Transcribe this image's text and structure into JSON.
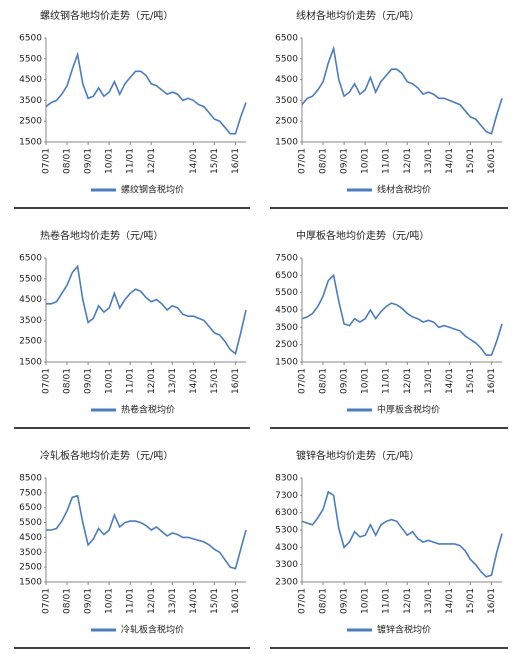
{
  "chart_data": [
    {
      "type": "line",
      "title": "螺纹钢各地均价走势（元/吨）",
      "x": [
        "07/01",
        "07/04",
        "07/07",
        "07/10",
        "08/01",
        "08/04",
        "08/07",
        "08/10",
        "09/01",
        "09/04",
        "09/07",
        "09/10",
        "10/01",
        "10/04",
        "10/07",
        "10/10",
        "11/01",
        "11/04",
        "11/07",
        "11/10",
        "12/01",
        "12/04",
        "12/07",
        "12/10",
        "13/01",
        "13/04",
        "13/07",
        "13/10",
        "14/01",
        "14/04",
        "14/07",
        "14/10",
        "15/01",
        "15/04",
        "15/07",
        "15/10",
        "16/01",
        "16/04",
        "16/07"
      ],
      "xticks": [
        "07/01",
        "08/01",
        "09/01",
        "10/01",
        "11/01",
        "12/01",
        "14/01",
        "15/01",
        "16/01"
      ],
      "ylim": [
        1500,
        6500
      ],
      "yticks": [
        1500,
        2500,
        3500,
        4500,
        5500,
        6500
      ],
      "series": [
        {
          "name": "螺纹钢含税均价",
          "color": "#4a7cc0",
          "values": [
            3200,
            3400,
            3500,
            3800,
            4200,
            5000,
            5700,
            4300,
            3600,
            3700,
            4100,
            3700,
            3900,
            4400,
            3800,
            4300,
            4600,
            4900,
            4900,
            4700,
            4300,
            4200,
            4000,
            3800,
            3900,
            3800,
            3500,
            3600,
            3500,
            3300,
            3200,
            2900,
            2600,
            2500,
            2200,
            1900,
            1900,
            2700,
            3400
          ]
        }
      ]
    },
    {
      "type": "line",
      "title": "线材各地均价走势（元/吨）",
      "x": [
        "07/01",
        "07/04",
        "07/07",
        "07/10",
        "08/01",
        "08/04",
        "08/07",
        "08/10",
        "09/01",
        "09/04",
        "09/07",
        "09/10",
        "10/01",
        "10/04",
        "10/07",
        "10/10",
        "11/01",
        "11/04",
        "11/07",
        "11/10",
        "12/01",
        "12/04",
        "12/07",
        "12/10",
        "13/01",
        "13/04",
        "13/07",
        "13/10",
        "14/01",
        "14/04",
        "14/07",
        "14/10",
        "15/01",
        "15/04",
        "15/07",
        "15/10",
        "16/01",
        "16/04",
        "16/07"
      ],
      "xticks": [
        "07/01",
        "08/01",
        "09/01",
        "10/01",
        "11/01",
        "12/01",
        "13/01",
        "14/01",
        "15/01",
        "16/01"
      ],
      "ylim": [
        1500,
        6500
      ],
      "yticks": [
        1500,
        2500,
        3500,
        4500,
        5500,
        6500
      ],
      "series": [
        {
          "name": "线材含税均价",
          "color": "#4a7cc0",
          "values": [
            3300,
            3600,
            3700,
            4000,
            4400,
            5300,
            6000,
            4500,
            3700,
            3900,
            4300,
            3800,
            4000,
            4600,
            3900,
            4400,
            4700,
            5000,
            5000,
            4800,
            4400,
            4300,
            4100,
            3800,
            3900,
            3800,
            3600,
            3600,
            3500,
            3400,
            3300,
            3000,
            2700,
            2600,
            2300,
            2000,
            1900,
            2800,
            3600
          ]
        }
      ]
    },
    {
      "type": "line",
      "title": "热卷各地均价走势（元/吨）",
      "x": [
        "07/01",
        "07/04",
        "07/07",
        "07/10",
        "08/01",
        "08/04",
        "08/07",
        "08/10",
        "09/01",
        "09/04",
        "09/07",
        "09/10",
        "10/01",
        "10/04",
        "10/07",
        "10/10",
        "11/01",
        "11/04",
        "11/07",
        "11/10",
        "12/01",
        "12/04",
        "12/07",
        "12/10",
        "13/01",
        "13/04",
        "13/07",
        "13/10",
        "14/01",
        "14/04",
        "14/07",
        "14/10",
        "15/01",
        "15/04",
        "15/07",
        "15/10",
        "16/01",
        "16/04",
        "16/07"
      ],
      "xticks": [
        "07/01",
        "08/01",
        "09/01",
        "10/01",
        "11/01",
        "12/01",
        "13/01",
        "14/01",
        "15/01",
        "16/01"
      ],
      "ylim": [
        1500,
        6500
      ],
      "yticks": [
        1500,
        2500,
        3500,
        4500,
        5500,
        6500
      ],
      "series": [
        {
          "name": "热卷含税均价",
          "color": "#4a7cc0",
          "values": [
            4300,
            4300,
            4400,
            4800,
            5200,
            5800,
            6100,
            4500,
            3400,
            3600,
            4200,
            3900,
            4100,
            4800,
            4100,
            4500,
            4800,
            5000,
            4900,
            4600,
            4400,
            4500,
            4300,
            4000,
            4200,
            4100,
            3800,
            3700,
            3700,
            3600,
            3500,
            3200,
            2900,
            2800,
            2500,
            2100,
            1900,
            2900,
            4000
          ]
        }
      ]
    },
    {
      "type": "line",
      "title": "中厚板各地均价走势（元/吨）",
      "x": [
        "07/01",
        "07/04",
        "07/07",
        "07/10",
        "08/01",
        "08/04",
        "08/07",
        "08/10",
        "09/01",
        "09/04",
        "09/07",
        "09/10",
        "10/01",
        "10/04",
        "10/07",
        "10/10",
        "11/01",
        "11/04",
        "11/07",
        "11/10",
        "12/01",
        "12/04",
        "12/07",
        "12/10",
        "13/01",
        "13/04",
        "13/07",
        "13/10",
        "14/01",
        "14/04",
        "14/07",
        "14/10",
        "15/01",
        "15/04",
        "15/07",
        "15/10",
        "16/01",
        "16/04",
        "16/07"
      ],
      "xticks": [
        "07/01",
        "08/01",
        "09/01",
        "10/01",
        "11/01",
        "12/01",
        "13/01",
        "14/01",
        "15/01",
        "16/01"
      ],
      "ylim": [
        1500,
        7500
      ],
      "yticks": [
        1500,
        2500,
        3500,
        4500,
        5500,
        6500,
        7500
      ],
      "series": [
        {
          "name": "中厚板含税均价",
          "color": "#4a7cc0",
          "values": [
            4000,
            4100,
            4300,
            4700,
            5300,
            6200,
            6500,
            5000,
            3700,
            3600,
            4000,
            3800,
            4000,
            4500,
            4000,
            4400,
            4700,
            4900,
            4800,
            4600,
            4300,
            4100,
            4000,
            3800,
            3900,
            3800,
            3500,
            3600,
            3500,
            3400,
            3300,
            3000,
            2800,
            2600,
            2300,
            1900,
            1900,
            2700,
            3700
          ]
        }
      ]
    },
    {
      "type": "line",
      "title": "冷轧板各地均价走势（元/吨）",
      "x": [
        "07/01",
        "07/04",
        "07/07",
        "07/10",
        "08/01",
        "08/04",
        "08/07",
        "08/10",
        "09/01",
        "09/04",
        "09/07",
        "09/10",
        "10/01",
        "10/04",
        "10/07",
        "10/10",
        "11/01",
        "11/04",
        "11/07",
        "11/10",
        "12/01",
        "12/04",
        "12/07",
        "12/10",
        "13/01",
        "13/04",
        "13/07",
        "13/10",
        "14/01",
        "14/04",
        "14/07",
        "14/10",
        "15/01",
        "15/04",
        "15/07",
        "15/10",
        "16/01",
        "16/04",
        "16/07"
      ],
      "xticks": [
        "07/01",
        "08/01",
        "09/01",
        "10/01",
        "11/01",
        "12/01",
        "13/01",
        "14/01",
        "15/01",
        "16/01"
      ],
      "ylim": [
        1500,
        8500
      ],
      "yticks": [
        1500,
        2500,
        3500,
        4500,
        5500,
        6500,
        7500,
        8500
      ],
      "series": [
        {
          "name": "冷轧板含税均价",
          "color": "#4a7cc0",
          "values": [
            5000,
            5000,
            5100,
            5600,
            6300,
            7200,
            7300,
            5500,
            4000,
            4400,
            5100,
            4700,
            5000,
            6000,
            5200,
            5500,
            5600,
            5600,
            5500,
            5300,
            5000,
            5200,
            4900,
            4600,
            4800,
            4700,
            4500,
            4500,
            4400,
            4300,
            4200,
            4000,
            3700,
            3500,
            3000,
            2500,
            2400,
            3700,
            5000
          ]
        }
      ]
    },
    {
      "type": "line",
      "title": "镀锌各地均价走势（元/吨）",
      "x": [
        "07/01",
        "07/04",
        "07/07",
        "07/10",
        "08/01",
        "08/04",
        "08/07",
        "08/10",
        "09/01",
        "09/04",
        "09/07",
        "09/10",
        "10/01",
        "10/04",
        "10/07",
        "10/10",
        "11/01",
        "11/04",
        "11/07",
        "11/10",
        "12/01",
        "12/04",
        "12/07",
        "12/10",
        "13/01",
        "13/04",
        "13/07",
        "13/10",
        "14/01",
        "14/04",
        "14/07",
        "14/10",
        "15/01",
        "15/04",
        "15/07",
        "15/10",
        "16/01",
        "16/04",
        "16/07"
      ],
      "xticks": [
        "07/01",
        "08/01",
        "09/01",
        "10/01",
        "11/01",
        "12/01",
        "13/01",
        "14/01",
        "15/01",
        "16/01"
      ],
      "ylim": [
        2300,
        8300
      ],
      "yticks": [
        2300,
        3300,
        4300,
        5300,
        6300,
        7300,
        8300
      ],
      "series": [
        {
          "name": "镀锌含税均价",
          "color": "#4a7cc0",
          "values": [
            5800,
            5700,
            5600,
            6000,
            6500,
            7500,
            7300,
            5400,
            4300,
            4600,
            5200,
            4900,
            5000,
            5600,
            5000,
            5600,
            5800,
            5900,
            5800,
            5400,
            5000,
            5200,
            4800,
            4600,
            4700,
            4600,
            4500,
            4500,
            4500,
            4500,
            4400,
            4100,
            3600,
            3300,
            2900,
            2600,
            2700,
            4000,
            5100
          ]
        }
      ]
    }
  ]
}
